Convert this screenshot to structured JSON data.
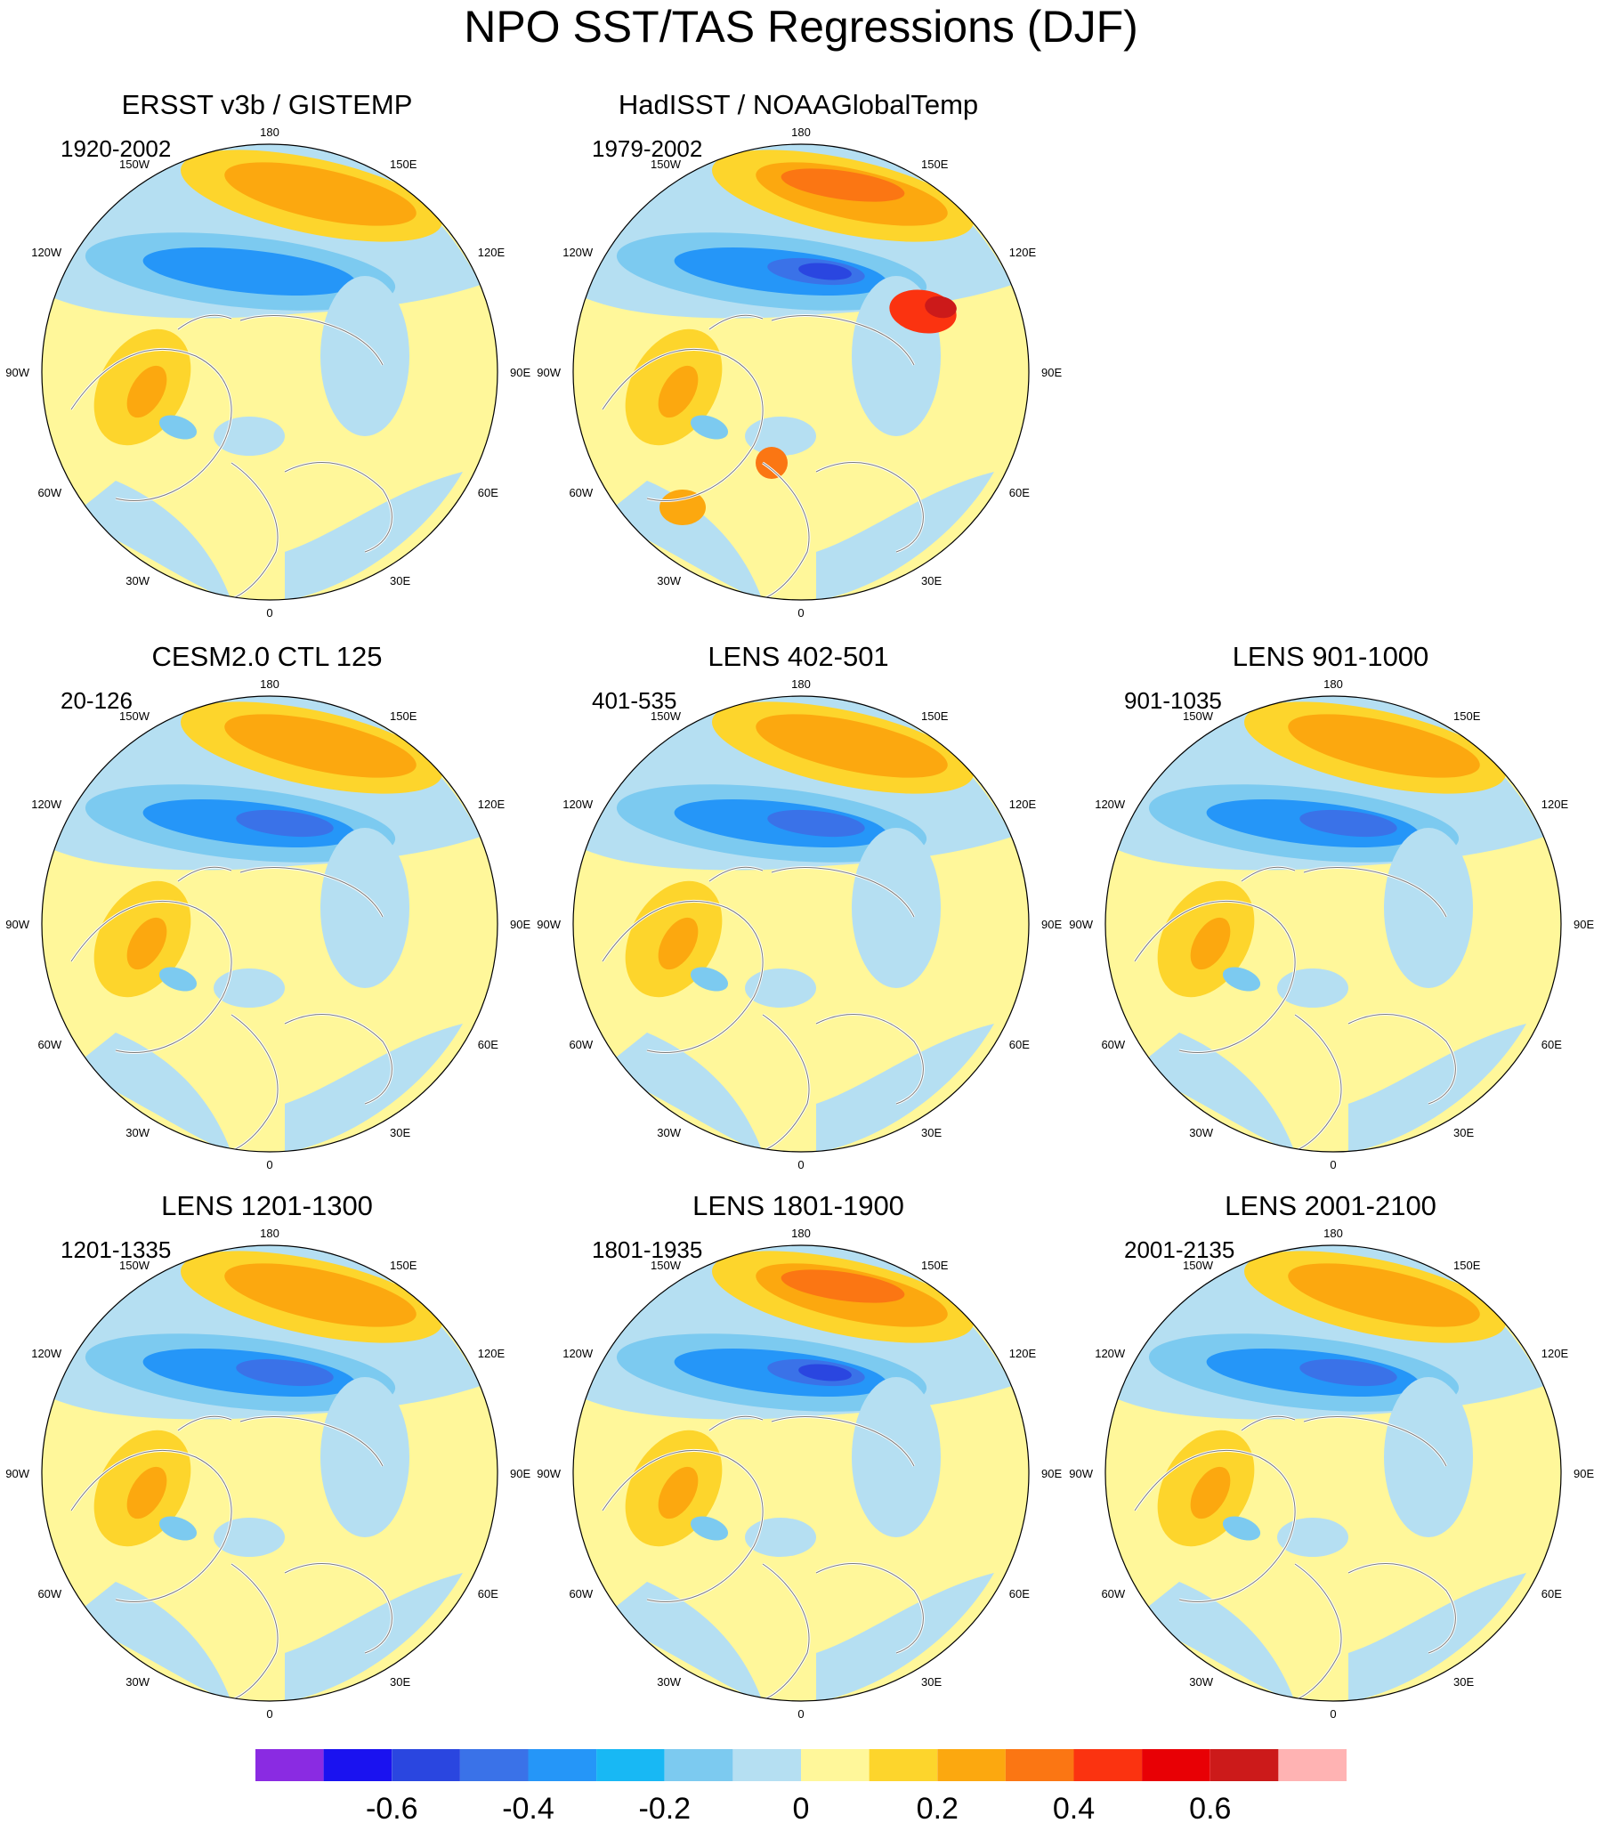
{
  "title": "NPO SST/TAS Regressions (DJF)",
  "longitude_labels": [
    "180",
    "150E",
    "120E",
    "90E",
    "60E",
    "30E",
    "0",
    "30W",
    "60W",
    "90W",
    "120W",
    "150W"
  ],
  "panels": [
    {
      "title": "ERSST v3b / GISTEMP",
      "years": "1920-2002",
      "style": "obs1"
    },
    {
      "title": "HadISST / NOAAGlobalTemp",
      "years": "1979-2002",
      "style": "obs2"
    },
    {
      "title": "CESM2.0 CTL 125",
      "years": "20-126",
      "style": "model"
    },
    {
      "title": "LENS 402-501",
      "years": "401-535",
      "style": "model"
    },
    {
      "title": "LENS 901-1000",
      "years": "901-1035",
      "style": "model"
    },
    {
      "title": "LENS 1201-1300",
      "years": "1201-1335",
      "style": "model"
    },
    {
      "title": "LENS 1801-1900",
      "years": "1801-1935",
      "style": "model_strong"
    },
    {
      "title": "LENS 2001-2100",
      "years": "2001-2135",
      "style": "model"
    }
  ],
  "colorbar": {
    "colors": [
      "#8a2be2",
      "#1a12f0",
      "#2a46e0",
      "#3a72e8",
      "#2596f8",
      "#18b8f4",
      "#7ccaf0",
      "#b5dff2",
      "#fff79a",
      "#fdd52c",
      "#fca80f",
      "#fb7613",
      "#fb3310",
      "#e80005",
      "#cc1a1a",
      "#ffb3b3"
    ],
    "tick_values": [
      -0.6,
      -0.4,
      -0.2,
      0,
      0.2,
      0.4,
      0.6
    ],
    "tick_labels": [
      "-0.6",
      "-0.4",
      "-0.2",
      "0",
      "0.2",
      "0.4",
      "0.6"
    ]
  }
}
